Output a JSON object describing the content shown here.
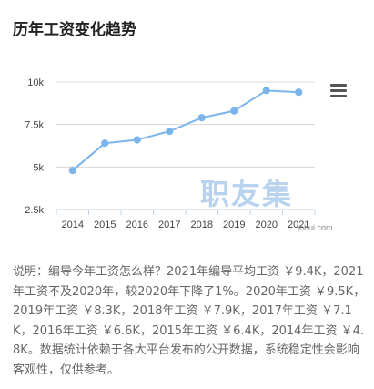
{
  "page": {
    "title": "历年工资变化趋势",
    "description": "说明：编导今年工资怎么样？2021年编导平均工资 ￥9.4K，2021年工资不及2020年，较2020年下降了1%。2020年工资 ￥9.5K，2019年工资 ￥8.3K，2018年工资 ￥7.9K，2017年工资 ￥7.1K，2016年工资 ￥6.6K，2015年工资 ￥6.4K，2014年工资 ￥4.8K。数据统计依赖于各大平台发布的公开数据，系统稳定性会影响客观性，仅供参考。"
  },
  "watermark": {
    "text": "职友集",
    "url": "jobui.com"
  },
  "menu": {
    "icon": "hamburger-menu-icon"
  },
  "colors": {
    "line": "#7cb5ec",
    "grid": "#d8d8d8",
    "axis": "#c0d0e0",
    "tick_text": "#444444"
  },
  "chart_data": {
    "type": "line",
    "title": "",
    "xlabel": "",
    "ylabel": "",
    "categories": [
      "2014",
      "2015",
      "2016",
      "2017",
      "2018",
      "2019",
      "2020",
      "2021"
    ],
    "values": [
      4.8,
      6.4,
      6.6,
      7.1,
      7.9,
      8.3,
      9.5,
      9.4
    ],
    "y_ticks": [
      2.5,
      5,
      7.5,
      10
    ],
    "y_tick_labels": [
      "2.5k",
      "5k",
      "7.5k",
      "10k"
    ],
    "ylim": [
      2.5,
      10
    ],
    "grid": true,
    "legend": "none"
  }
}
